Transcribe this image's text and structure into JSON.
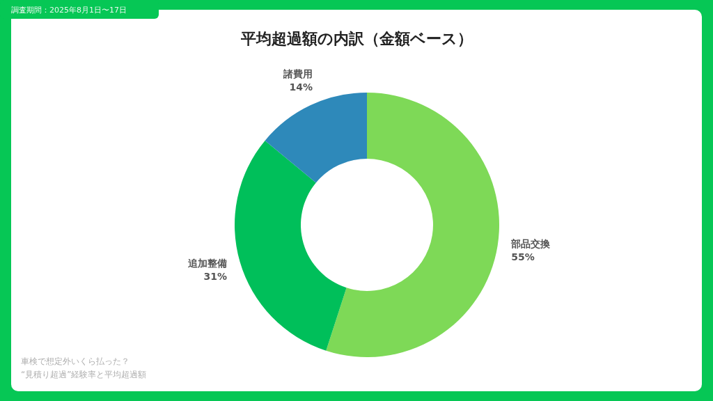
{
  "chart_data": {
    "type": "donut",
    "title": "平均超過額の内訳（金額ベース）",
    "categories": [
      "部品交換",
      "追加整備",
      "諸費用"
    ],
    "values": [
      55,
      31,
      14
    ],
    "value_labels": [
      "55%",
      "31%",
      "14%"
    ],
    "colors": [
      "#7ed957",
      "#00bf5a",
      "#2e89ba"
    ],
    "annotations": [
      "調査期間：2025年8月1日〜17日",
      "車検で想定外いくら払った？",
      "“見積り超過”経験率と平均超過額"
    ]
  }
}
